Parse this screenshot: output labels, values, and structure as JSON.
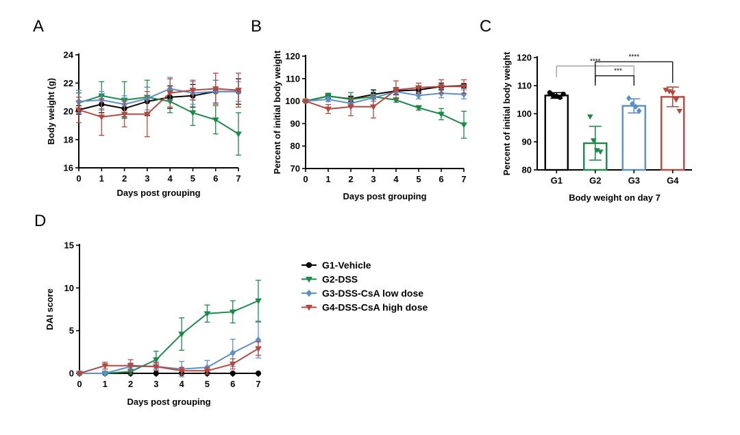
{
  "series_styles": [
    {
      "name": "G1-Vehicle",
      "color": "#000000",
      "marker": "circle"
    },
    {
      "name": "G2-DSS",
      "color": "#1a8a47",
      "marker": "triangle-down"
    },
    {
      "name": "G3-DSS-CsA low dose",
      "color": "#5b8fc7",
      "marker": "diamond"
    },
    {
      "name": "G4-DSS-CsA high dose",
      "color": "#b4483f",
      "marker": "triangle-down"
    }
  ],
  "chart_data": [
    {
      "panel": "A",
      "type": "line",
      "xlabel": "Days post grouping",
      "ylabel": "Body weight (g)",
      "x": [
        0,
        1,
        2,
        3,
        4,
        5,
        6,
        7
      ],
      "xticks": [
        "0",
        "1",
        "2",
        "3",
        "4",
        "5",
        "6",
        "7"
      ],
      "ylim": [
        16,
        24
      ],
      "yticks": [
        16,
        18,
        20,
        22,
        24
      ],
      "series": [
        {
          "name": "G1-Vehicle",
          "values": [
            20.1,
            20.5,
            20.2,
            20.7,
            21.0,
            21.1,
            21.4,
            21.4
          ],
          "err": [
            0.3,
            0.6,
            0.6,
            1.0,
            0.8,
            0.8,
            0.8,
            0.9
          ]
        },
        {
          "name": "G2-DSS",
          "values": [
            20.6,
            21.1,
            20.8,
            21.0,
            20.7,
            19.9,
            19.4,
            18.4
          ],
          "err": [
            0.7,
            1.0,
            1.3,
            1.2,
            0.8,
            0.9,
            1.0,
            1.5
          ]
        },
        {
          "name": "G3-DSS-CsA low dose",
          "values": [
            20.7,
            20.8,
            20.5,
            20.9,
            21.6,
            21.3,
            21.4,
            21.4
          ],
          "err": [
            0.8,
            0.6,
            0.6,
            0.8,
            0.8,
            0.8,
            0.8,
            0.7
          ]
        },
        {
          "name": "G4-DSS-CsA high dose",
          "values": [
            20.1,
            19.6,
            19.8,
            19.8,
            21.3,
            21.5,
            21.6,
            21.5
          ],
          "err": [
            0.9,
            1.3,
            0.9,
            1.6,
            1.0,
            0.7,
            1.1,
            1.2
          ]
        }
      ]
    },
    {
      "panel": "B",
      "type": "line",
      "xlabel": "Days post grouping",
      "ylabel": "Percent of initial body weight",
      "x": [
        0,
        1,
        2,
        3,
        4,
        5,
        6,
        7
      ],
      "xticks": [
        "0",
        "1",
        "2",
        "3",
        "4",
        "5",
        "6",
        "7"
      ],
      "ylim": [
        70,
        120
      ],
      "yticks": [
        70,
        80,
        90,
        100,
        110,
        120
      ],
      "series": [
        {
          "name": "G1-Vehicle",
          "values": [
            100,
            102.2,
            101.0,
            103.0,
            104.5,
            105.0,
            106.5,
            106.8
          ],
          "err": [
            0.3,
            1.0,
            1.2,
            2.0,
            1.5,
            1.5,
            1.5,
            1.0
          ]
        },
        {
          "name": "G2-DSS",
          "values": [
            100,
            102.3,
            100.8,
            102.0,
            100.5,
            97.0,
            94.2,
            89.5
          ],
          "err": [
            0.3,
            1.2,
            3.0,
            2.0,
            1.0,
            1.0,
            2.5,
            6.0
          ]
        },
        {
          "name": "G3-DSS-CsA low dose",
          "values": [
            100,
            100.8,
            99.0,
            101.5,
            104.2,
            102.5,
            103.5,
            103.0
          ],
          "err": [
            0.3,
            1.0,
            1.5,
            1.5,
            1.5,
            1.5,
            2.0,
            2.0
          ]
        },
        {
          "name": "G4-DSS-CsA high dose",
          "values": [
            100,
            96.5,
            97.5,
            97.5,
            105.0,
            106.0,
            106.5,
            106.5
          ],
          "err": [
            0.3,
            2.0,
            4.0,
            5.0,
            4.0,
            2.0,
            3.0,
            3.0
          ]
        }
      ]
    },
    {
      "panel": "C",
      "type": "bar",
      "xlabel": "Body weight on day 7",
      "ylabel": "Percent of initial body weight",
      "categories": [
        "G1",
        "G2",
        "G3",
        "G4"
      ],
      "values": [
        106.5,
        89.5,
        102.8,
        106.0
      ],
      "err": [
        1.0,
        6.0,
        2.5,
        3.5
      ],
      "points": [
        [
          107.5,
          106.5,
          106.2,
          105.8,
          107.0
        ],
        [
          99.0,
          90.5,
          87.0,
          86.5
        ],
        [
          105.5,
          103.5,
          102.5,
          101.0
        ],
        [
          108.5,
          108.0,
          107.5,
          105.0,
          101.0
        ]
      ],
      "ylim": [
        80,
        120
      ],
      "yticks": [
        80,
        90,
        100,
        110,
        120
      ],
      "significance": [
        {
          "from": 0,
          "to": 2,
          "label": "****"
        },
        {
          "from": 1,
          "to": 2,
          "label": "***"
        },
        {
          "from": 1,
          "to": 3,
          "label": "****"
        }
      ]
    },
    {
      "panel": "D",
      "type": "line",
      "xlabel": "Days post grouping",
      "ylabel": "DAI score",
      "x": [
        0,
        1,
        2,
        3,
        4,
        5,
        6,
        7
      ],
      "xticks": [
        "0",
        "1",
        "2",
        "3",
        "4",
        "5",
        "6",
        "7"
      ],
      "ylim": [
        0,
        15
      ],
      "yticks": [
        0,
        5,
        10,
        15
      ],
      "series": [
        {
          "name": "G1-Vehicle",
          "values": [
            0,
            0,
            0,
            0,
            0,
            0,
            0,
            0
          ],
          "err": [
            0,
            0,
            0,
            0,
            0,
            0,
            0,
            0
          ]
        },
        {
          "name": "G2-DSS",
          "values": [
            0,
            0,
            0.2,
            1.6,
            4.6,
            7.0,
            7.2,
            8.5
          ],
          "err": [
            0,
            0,
            0.3,
            1.0,
            1.9,
            1.0,
            1.3,
            2.4
          ]
        },
        {
          "name": "G3-DSS-CsA low dose",
          "values": [
            0,
            0,
            0.8,
            0.8,
            0.5,
            0.7,
            2.4,
            3.9
          ],
          "err": [
            0,
            0,
            0.4,
            0.4,
            0.9,
            0.8,
            1.6,
            2.1
          ]
        },
        {
          "name": "G4-DSS-CsA high dose",
          "values": [
            0,
            0.9,
            0.9,
            0.8,
            0.3,
            0.3,
            1.1,
            2.9
          ],
          "err": [
            0,
            0.4,
            0.7,
            0.5,
            0.4,
            0.4,
            0.6,
            0.8
          ]
        }
      ]
    }
  ],
  "legend": {
    "entries": [
      "G1-Vehicle",
      "G2-DSS",
      "G3-DSS-CsA low dose",
      "G4-DSS-CsA high dose"
    ]
  }
}
